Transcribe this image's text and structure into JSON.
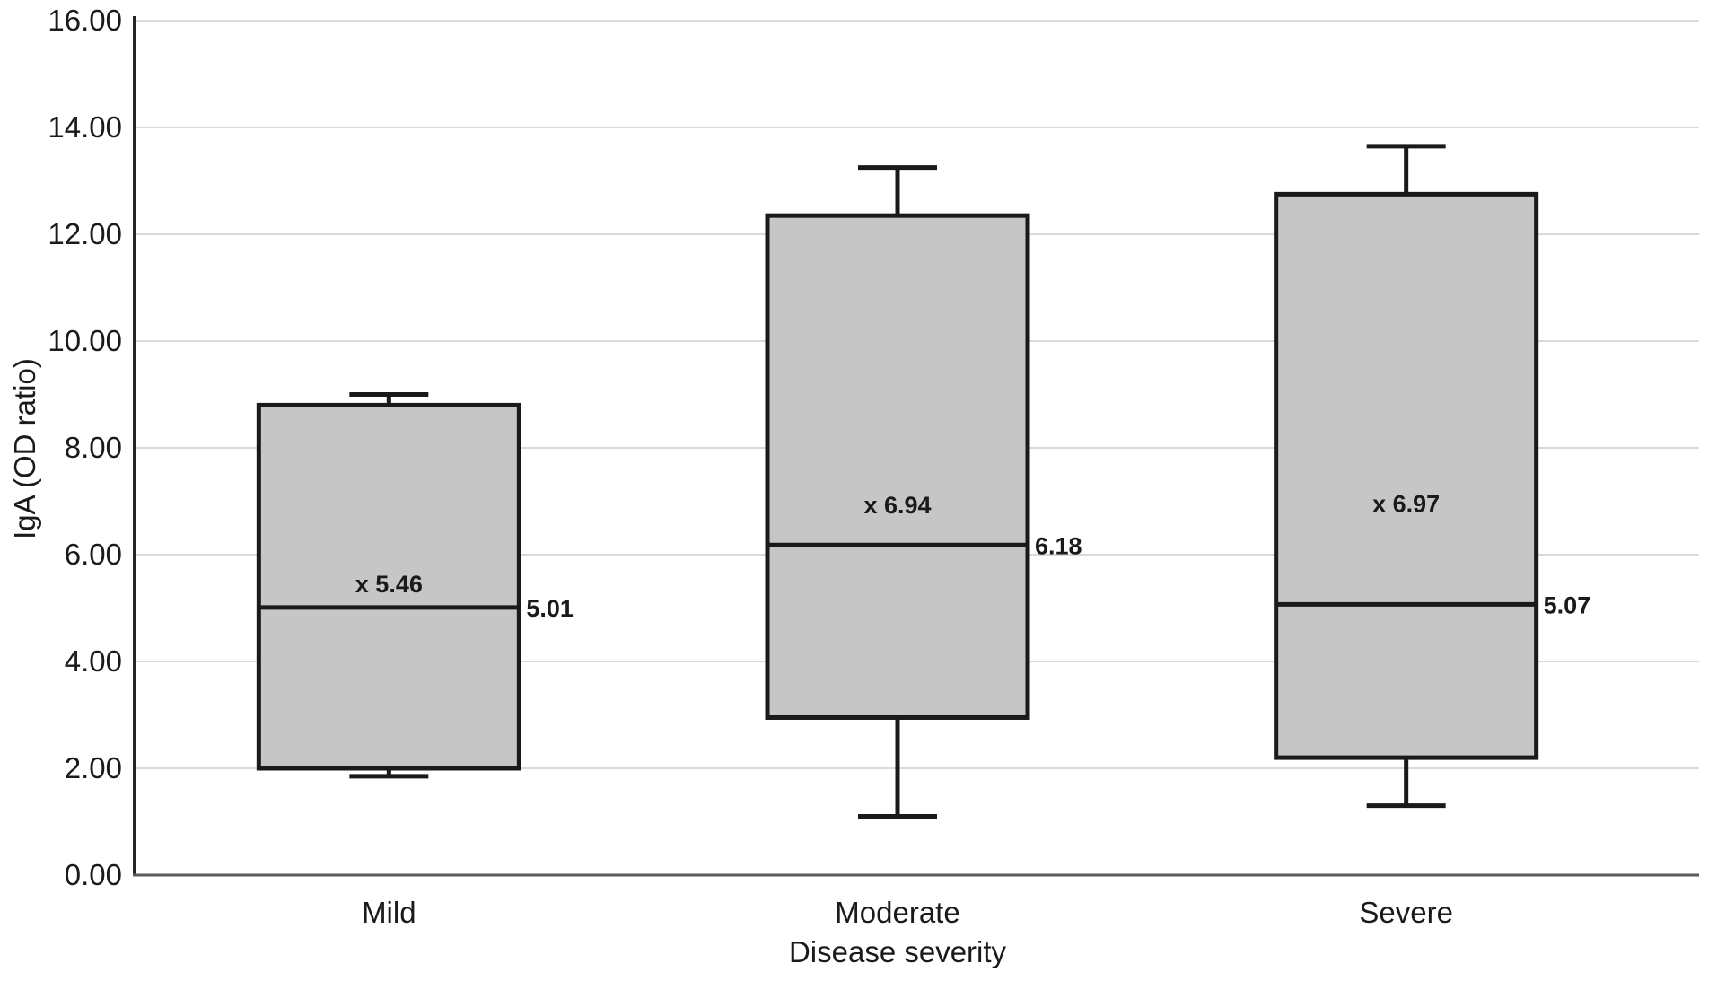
{
  "chart_data": {
    "type": "boxplot",
    "title": "",
    "xlabel": "Disease severity",
    "ylabel": "IgA (OD ratio)",
    "categories": [
      "Mild",
      "Moderate",
      "Severe"
    ],
    "series": [
      {
        "category": "Mild",
        "whisker_low": 1.85,
        "q1": 2.0,
        "median": 5.01,
        "q3": 8.8,
        "whisker_high": 9.0,
        "mean": 5.46,
        "mean_label": "x 5.46",
        "median_label": "5.01"
      },
      {
        "category": "Moderate",
        "whisker_low": 1.1,
        "q1": 2.95,
        "median": 6.18,
        "q3": 12.35,
        "whisker_high": 13.25,
        "mean": 6.94,
        "mean_label": "x 6.94",
        "median_label": "6.18"
      },
      {
        "category": "Severe",
        "whisker_low": 1.3,
        "q1": 2.2,
        "median": 5.07,
        "q3": 12.75,
        "whisker_high": 13.65,
        "mean": 6.97,
        "mean_label": "x 6.97",
        "median_label": "5.07"
      }
    ],
    "y_axis": {
      "min": 0,
      "max": 16,
      "step": 2,
      "tick_labels": [
        "0.00",
        "2.00",
        "4.00",
        "6.00",
        "8.00",
        "10.00",
        "12.00",
        "14.00",
        "16.00"
      ]
    },
    "grid": true,
    "legend": "none",
    "colors": {
      "box_fill": "#c6c6c6",
      "box_border": "#1a1a1a",
      "gridline": "#d9d9d9",
      "x_axis": "#595959",
      "y_axis": "#262626",
      "text": "#1a1a1a"
    }
  }
}
